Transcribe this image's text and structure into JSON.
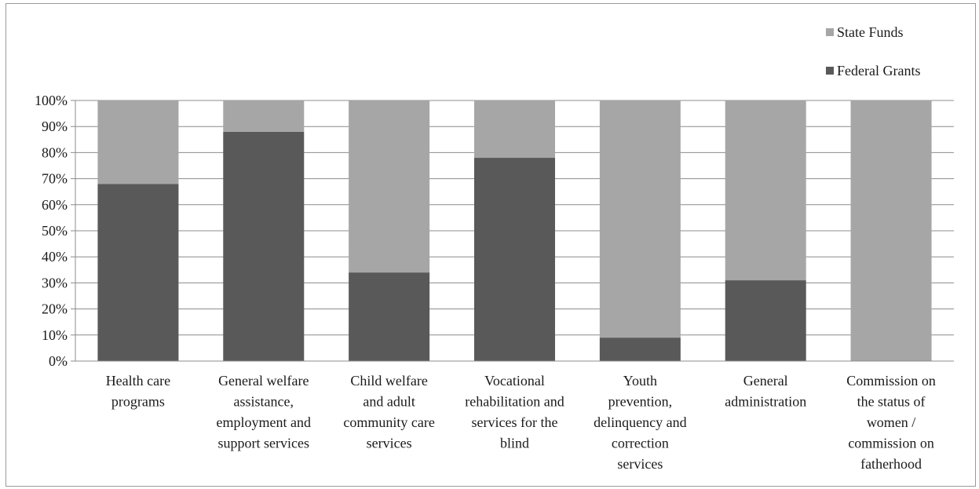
{
  "chart_data": {
    "type": "bar",
    "stacked": true,
    "percent": true,
    "categories": [
      "Health care programs",
      "General welfare assistance, employment and support services",
      "Child welfare and adult community care services",
      "Vocational rehabilitation and services for the blind",
      "Youth prevention, delinquency and correction services",
      "General administration",
      "Commission on the status of women / commission on fatherhood"
    ],
    "category_label_lines": [
      [
        "Health care",
        "programs"
      ],
      [
        "General welfare",
        "assistance,",
        "employment and",
        "support services"
      ],
      [
        "Child welfare",
        "and adult",
        "community care",
        "services"
      ],
      [
        "Vocational",
        "rehabilitation and",
        "services for the",
        "blind"
      ],
      [
        "Youth",
        "prevention,",
        "delinquency and",
        "correction",
        "services"
      ],
      [
        "General",
        "administration"
      ],
      [
        "Commission on",
        "the status of",
        "women /",
        "commission on",
        "fatherhood"
      ]
    ],
    "series": [
      {
        "name": "Federal Grants",
        "color": "#595959",
        "values": [
          68,
          88,
          34,
          78,
          9,
          31,
          0
        ]
      },
      {
        "name": "State Funds",
        "color": "#a6a6a6",
        "values": [
          32,
          12,
          66,
          22,
          91,
          69,
          100
        ]
      }
    ],
    "ylim": [
      0,
      100
    ],
    "yticks": [
      "0%",
      "10%",
      "20%",
      "30%",
      "40%",
      "50%",
      "60%",
      "70%",
      "80%",
      "90%",
      "100%"
    ],
    "grid": true,
    "legend": [
      {
        "name": "State Funds",
        "color": "#a6a6a6"
      },
      {
        "name": "Federal Grants",
        "color": "#595959"
      }
    ],
    "legend_position": "top-right",
    "title": "",
    "xlabel": "",
    "ylabel": ""
  }
}
